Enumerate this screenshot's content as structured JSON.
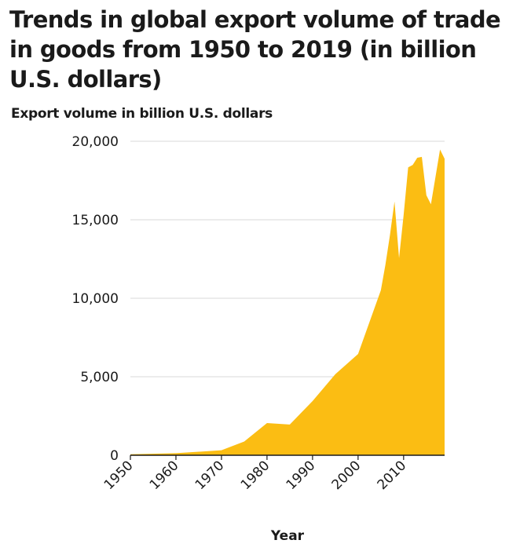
{
  "chart_data": {
    "type": "area",
    "title": "Trends in global export volume of trade in goods from 1950 to 2019 (in billion U.S. dollars)",
    "xlabel": "Year",
    "ylabel": "Export volume in billion U.S. dollars",
    "x": [
      1950,
      1960,
      1970,
      1975,
      1980,
      1985,
      1990,
      1995,
      2000,
      2005,
      2006,
      2007,
      2008,
      2009,
      2010,
      2011,
      2012,
      2013,
      2014,
      2015,
      2016,
      2017,
      2018,
      2019
    ],
    "values": [
      62,
      130,
      318,
      877,
      2049,
      1954,
      3449,
      5164,
      6452,
      10509,
      12131,
      14023,
      16160,
      12555,
      15301,
      18338,
      18496,
      18950,
      19005,
      16560,
      15990,
      17730,
      19475,
      18890
    ],
    "xlim": [
      1950,
      2019
    ],
    "ylim": [
      0,
      20000
    ],
    "xticks": [
      1950,
      1960,
      1970,
      1980,
      1990,
      2000,
      2010
    ],
    "xtick_labels": [
      "1950",
      "1960",
      "1970",
      "1980",
      "1990",
      "2000",
      "2010"
    ],
    "yticks": [
      0,
      5000,
      10000,
      15000,
      20000
    ],
    "ytick_labels": [
      "0",
      "5,000",
      "10,000",
      "15,000",
      "20,000"
    ],
    "grid": true,
    "fill_color": "#fbbd13",
    "grid_color": "#d9d9d9",
    "axis_color": "#1a1a1a"
  }
}
